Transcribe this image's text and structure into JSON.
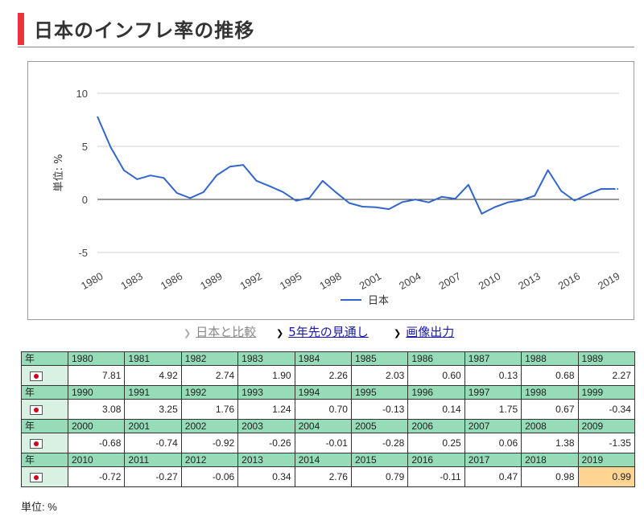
{
  "page": {
    "title": "日本のインフレ率の推移",
    "links": [
      {
        "label": "日本と比較"
      },
      {
        "label": "5年先の見通し"
      },
      {
        "label": "画像出力"
      }
    ],
    "unit_note": "単位: %"
  },
  "colors": {
    "accent": "#e8343a",
    "series": "#3366cc",
    "table_header": "#96dcb8",
    "flag_cell": "#d9f1e3",
    "highlight": "#ffd591"
  },
  "chart_data": {
    "type": "line",
    "ylabel": "単位: %",
    "ylim": [
      -5,
      10
    ],
    "yticks": [
      "10",
      "5",
      "0",
      "-5"
    ],
    "xticks": [
      "1980",
      "1983",
      "1986",
      "1989",
      "1992",
      "1995",
      "1998",
      "2001",
      "2004",
      "2007",
      "2010",
      "2013",
      "2016",
      "2019"
    ],
    "legend_position": "bottom",
    "series": [
      {
        "name": "日本",
        "x": [
          1980,
          1981,
          1982,
          1983,
          1984,
          1985,
          1986,
          1987,
          1988,
          1989,
          1990,
          1991,
          1992,
          1993,
          1994,
          1995,
          1996,
          1997,
          1998,
          1999,
          2000,
          2001,
          2002,
          2003,
          2004,
          2005,
          2006,
          2007,
          2008,
          2009,
          2010,
          2011,
          2012,
          2013,
          2014,
          2015,
          2016,
          2017,
          2018,
          2019
        ],
        "values": [
          7.81,
          4.92,
          2.74,
          1.9,
          2.26,
          2.03,
          0.6,
          0.13,
          0.68,
          2.27,
          3.08,
          3.25,
          1.76,
          1.24,
          0.7,
          -0.13,
          0.14,
          1.75,
          0.67,
          -0.34,
          -0.68,
          -0.74,
          -0.92,
          -0.26,
          -0.01,
          -0.28,
          0.25,
          0.06,
          1.38,
          -1.35,
          -0.72,
          -0.27,
          -0.06,
          0.34,
          2.76,
          0.79,
          -0.11,
          0.47,
          0.98,
          0.99
        ]
      }
    ]
  },
  "table": {
    "year_label": "年",
    "rows": [
      {
        "years": [
          "1980",
          "1981",
          "1982",
          "1983",
          "1984",
          "1985",
          "1986",
          "1987",
          "1988",
          "1989"
        ],
        "values": [
          "7.81",
          "4.92",
          "2.74",
          "1.90",
          "2.26",
          "2.03",
          "0.60",
          "0.13",
          "0.68",
          "2.27"
        ]
      },
      {
        "years": [
          "1990",
          "1991",
          "1992",
          "1993",
          "1994",
          "1995",
          "1996",
          "1997",
          "1998",
          "1999"
        ],
        "values": [
          "3.08",
          "3.25",
          "1.76",
          "1.24",
          "0.70",
          "-0.13",
          "0.14",
          "1.75",
          "0.67",
          "-0.34"
        ]
      },
      {
        "years": [
          "2000",
          "2001",
          "2002",
          "2003",
          "2004",
          "2005",
          "2006",
          "2007",
          "2008",
          "2009"
        ],
        "values": [
          "-0.68",
          "-0.74",
          "-0.92",
          "-0.26",
          "-0.01",
          "-0.28",
          "0.25",
          "0.06",
          "1.38",
          "-1.35"
        ]
      },
      {
        "years": [
          "2010",
          "2011",
          "2012",
          "2013",
          "2014",
          "2015",
          "2016",
          "2017",
          "2018",
          "2019"
        ],
        "values": [
          "-0.72",
          "-0.27",
          "-0.06",
          "0.34",
          "2.76",
          "0.79",
          "-0.11",
          "0.47",
          "0.98",
          "0.99"
        ]
      }
    ]
  }
}
